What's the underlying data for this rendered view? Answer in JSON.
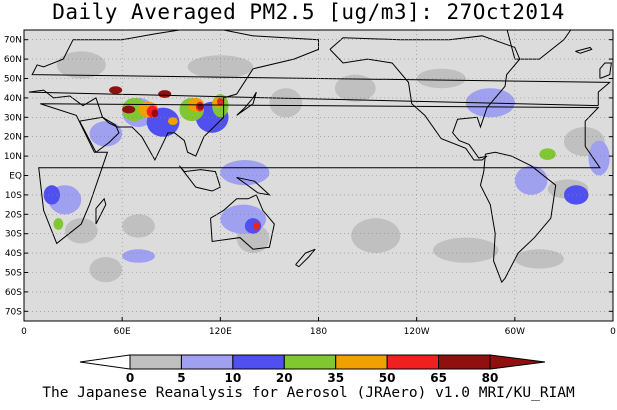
{
  "title": "Daily Averaged PM2.5 [ug/m3]: 27Oct2014",
  "footer": "The Japanese Reanalysis for Aerosol (JRAero) v1.0 MRI/KU_RIAM",
  "map": {
    "projection": "cylindrical-equidistant",
    "lon_range": [
      0,
      360
    ],
    "lat_range": [
      -75,
      75
    ],
    "lat_ticks": [
      {
        "lat": 70,
        "label": "70N"
      },
      {
        "lat": 60,
        "label": "60N"
      },
      {
        "lat": 50,
        "label": "50N"
      },
      {
        "lat": 40,
        "label": "40N"
      },
      {
        "lat": 30,
        "label": "30N"
      },
      {
        "lat": 20,
        "label": "20N"
      },
      {
        "lat": 10,
        "label": "10N"
      },
      {
        "lat": 0,
        "label": "EQ"
      },
      {
        "lat": -10,
        "label": "10S"
      },
      {
        "lat": -20,
        "label": "20S"
      },
      {
        "lat": -30,
        "label": "30S"
      },
      {
        "lat": -40,
        "label": "40S"
      },
      {
        "lat": -50,
        "label": "50S"
      },
      {
        "lat": -60,
        "label": "60S"
      },
      {
        "lat": -70,
        "label": "70S"
      }
    ],
    "lon_ticks": [
      {
        "lon": 0,
        "label": "0"
      },
      {
        "lon": 60,
        "label": "60E"
      },
      {
        "lon": 120,
        "label": "120E"
      },
      {
        "lon": 180,
        "label": "180"
      },
      {
        "lon": 240,
        "label": "120W"
      },
      {
        "lon": 300,
        "label": "60W"
      },
      {
        "lon": 360,
        "label": "0"
      }
    ]
  },
  "colorbar": {
    "levels": [
      0,
      5,
      10,
      20,
      35,
      50,
      65,
      80
    ],
    "colors": [
      "#ffffff",
      "#c0c0c0",
      "#a0a0f0",
      "#5050f0",
      "#80c830",
      "#f0a000",
      "#f02020",
      "#901010"
    ],
    "labels": [
      "0",
      "5",
      "10",
      "20",
      "35",
      "50",
      "65",
      "80"
    ]
  },
  "pm25_regions": [
    {
      "level": 1,
      "blobs": [
        [
          25,
          -35,
          45,
          -22
        ],
        [
          40,
          -55,
          60,
          -42
        ],
        [
          60,
          -32,
          80,
          -20
        ],
        [
          130,
          -40,
          150,
          -25
        ],
        [
          200,
          -40,
          230,
          -22
        ],
        [
          250,
          -45,
          290,
          -32
        ],
        [
          300,
          -48,
          330,
          -38
        ],
        [
          320,
          -12,
          345,
          -2
        ],
        [
          330,
          10,
          355,
          25
        ],
        [
          150,
          30,
          170,
          45
        ],
        [
          190,
          38,
          215,
          52
        ],
        [
          20,
          50,
          50,
          64
        ],
        [
          100,
          50,
          140,
          62
        ],
        [
          240,
          45,
          270,
          55
        ]
      ]
    },
    {
      "level": 2,
      "blobs": [
        [
          40,
          15,
          60,
          28
        ],
        [
          60,
          25,
          80,
          40
        ],
        [
          120,
          -5,
          150,
          8
        ],
        [
          15,
          -20,
          35,
          -5
        ],
        [
          120,
          -30,
          148,
          -15
        ],
        [
          345,
          0,
          358,
          18
        ],
        [
          300,
          -10,
          320,
          5
        ],
        [
          270,
          30,
          300,
          45
        ],
        [
          60,
          -45,
          80,
          -38
        ]
      ]
    },
    {
      "level": 3,
      "blobs": [
        [
          75,
          20,
          95,
          35
        ],
        [
          105,
          22,
          125,
          38
        ],
        [
          12,
          -15,
          22,
          -5
        ],
        [
          330,
          -15,
          345,
          -5
        ],
        [
          135,
          -30,
          145,
          -22
        ]
      ]
    },
    {
      "level": 4,
      "blobs": [
        [
          60,
          28,
          75,
          40
        ],
        [
          95,
          28,
          110,
          40
        ],
        [
          115,
          30,
          125,
          42
        ],
        [
          18,
          -28,
          24,
          -22
        ],
        [
          315,
          8,
          325,
          14
        ]
      ]
    },
    {
      "level": 5,
      "blobs": [
        [
          70,
          30,
          82,
          38
        ],
        [
          100,
          33,
          110,
          40
        ],
        [
          115,
          35,
          122,
          40
        ],
        [
          88,
          26,
          94,
          30
        ]
      ]
    },
    {
      "level": 6,
      "blobs": [
        [
          75,
          30,
          82,
          36
        ],
        [
          105,
          33,
          110,
          38
        ],
        [
          118,
          36,
          122,
          40
        ],
        [
          140,
          -28,
          144,
          -24
        ]
      ]
    },
    {
      "level": 7,
      "blobs": [
        [
          78,
          30,
          82,
          34
        ],
        [
          106,
          34,
          110,
          37
        ],
        [
          52,
          42,
          60,
          46
        ],
        [
          60,
          32,
          68,
          36
        ],
        [
          82,
          40,
          90,
          44
        ]
      ]
    }
  ]
}
